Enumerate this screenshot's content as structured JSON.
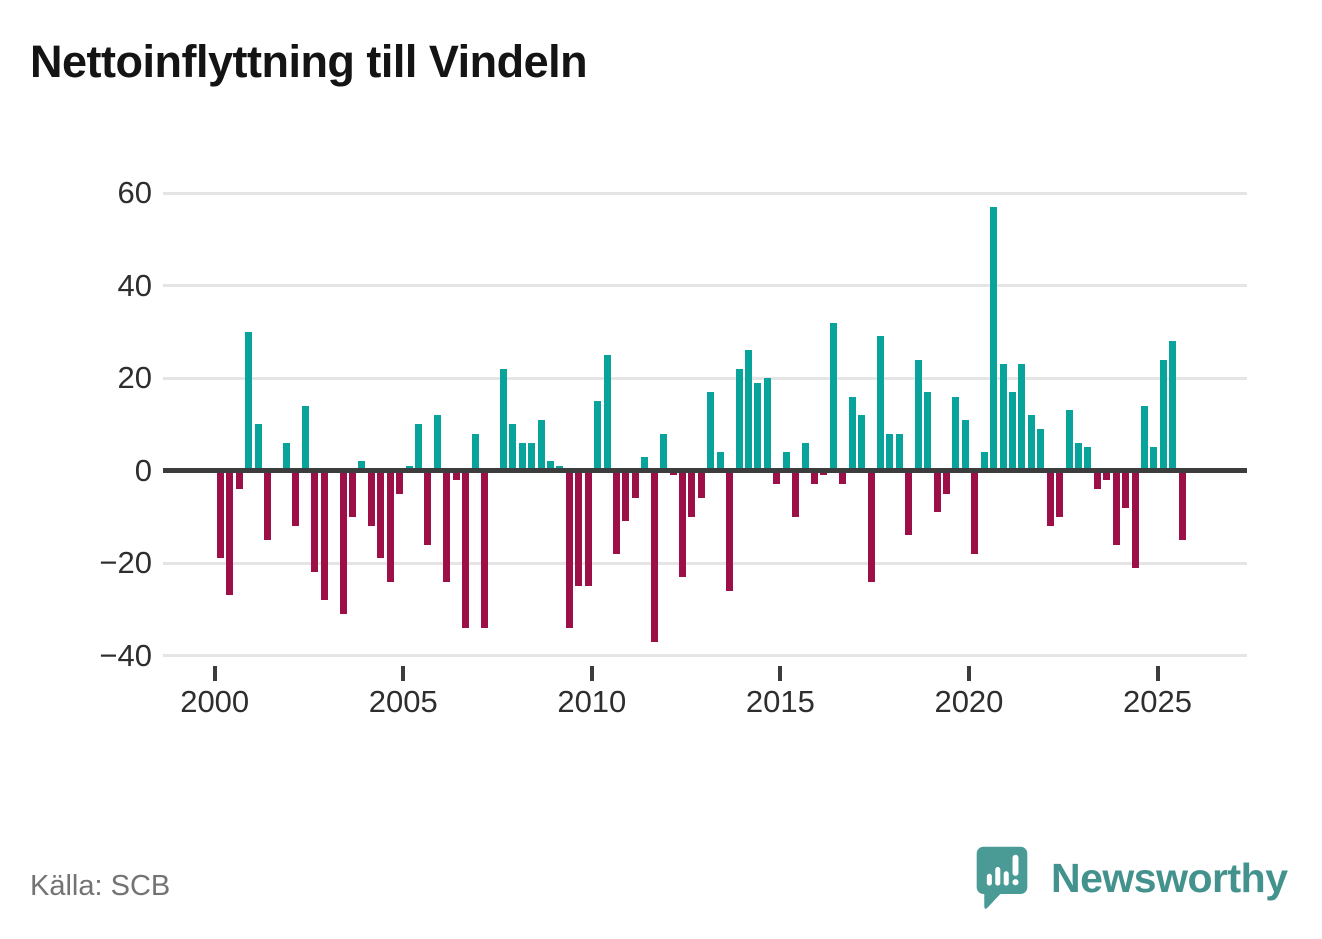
{
  "page": {
    "title": "Nettoinflyttning till Vindeln",
    "source_note": "Källa: SCB",
    "brand_name": "Newsworthy"
  },
  "colors": {
    "positive_bar": "#08a49b",
    "negative_bar": "#9c1047",
    "grid_line": "#e5e5e5",
    "zero_line": "#3c3c3c",
    "axis_text": "#2e2e2e",
    "title_text": "#141414",
    "source_text": "#737373",
    "brand_teal": "#43928d",
    "brand_icon_teal": "#4a9a95"
  },
  "chart_data": {
    "type": "bar",
    "title": "Nettoinflyttning till Vindeln",
    "frequency": "quarterly",
    "start_period": "2000-Q1",
    "end_period": "2025-Q3",
    "values": [
      -19,
      -27,
      -4,
      30,
      10,
      -15,
      0,
      6,
      -12,
      14,
      -22,
      -28,
      0,
      -31,
      -10,
      2,
      -12,
      -19,
      -24,
      -5,
      1,
      10,
      -16,
      12,
      -24,
      -2,
      -34,
      8,
      -34,
      0,
      22,
      10,
      6,
      6,
      11,
      2,
      1,
      -34,
      -25,
      -25,
      15,
      25,
      -18,
      -11,
      -6,
      3,
      -37,
      8,
      -1,
      -23,
      -10,
      -6,
      17,
      4,
      -26,
      22,
      26,
      19,
      20,
      -3,
      4,
      -10,
      6,
      -3,
      -1,
      32,
      -3,
      16,
      12,
      -24,
      29,
      8,
      8,
      -14,
      24,
      17,
      -9,
      -5,
      16,
      11,
      -18,
      4,
      57,
      23,
      17,
      23,
      12,
      9,
      -12,
      -10,
      13,
      6,
      5,
      -4,
      -2,
      -16,
      -8,
      -21,
      14,
      5,
      24,
      28,
      -15
    ],
    "x_tick_labels": [
      "2000",
      "2005",
      "2010",
      "2015",
      "2020",
      "2025"
    ],
    "y_tick_values": [
      60,
      40,
      20,
      0,
      -20,
      -40
    ],
    "ylim": [
      -44,
      62
    ],
    "grid": "horizontal",
    "legend": "none",
    "positive_color": "#08a49b",
    "negative_color": "#9c1047"
  }
}
